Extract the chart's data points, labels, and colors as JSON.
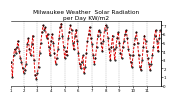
{
  "title": "Milwaukee Weather  Solar Radiation\nper Day KW/m2",
  "background_color": "#ffffff",
  "line_color": "#dd0000",
  "dot_color": "#000000",
  "grid_color": "#999999",
  "ylim": [
    0,
    7.5
  ],
  "y_values": [
    2.8,
    1.0,
    3.5,
    4.2,
    3.8,
    4.5,
    5.2,
    4.0,
    3.2,
    2.8,
    2.0,
    1.5,
    1.8,
    2.5,
    4.8,
    5.5,
    4.2,
    3.5,
    4.8,
    5.8,
    3.0,
    1.2,
    0.8,
    1.5,
    2.2,
    3.8,
    5.0,
    6.2,
    7.0,
    6.5,
    6.8,
    5.5,
    6.0,
    4.5,
    3.5,
    5.2,
    6.0,
    5.0,
    3.8,
    2.5,
    3.2,
    4.2,
    5.5,
    6.8,
    7.2,
    5.8,
    4.5,
    3.2,
    4.0,
    3.5,
    5.5,
    6.2,
    7.0,
    6.5,
    5.0,
    4.2,
    5.8,
    6.5,
    5.2,
    3.8,
    2.5,
    2.0,
    2.8,
    3.5,
    1.5,
    2.2,
    3.8,
    5.2,
    6.0,
    6.8,
    5.5,
    4.8,
    3.5,
    2.5,
    3.2,
    4.5,
    5.8,
    6.5,
    6.2,
    5.0,
    4.0,
    5.2,
    6.5,
    7.0,
    6.8,
    5.5,
    4.2,
    3.0,
    4.5,
    5.8,
    4.2,
    3.0,
    4.5,
    5.5,
    6.2,
    5.0,
    3.8,
    3.2,
    4.5,
    5.2,
    6.0,
    6.5,
    5.5,
    4.2,
    3.5,
    2.8,
    2.2,
    3.5,
    4.8,
    5.5,
    6.2,
    5.0,
    3.5,
    2.2,
    1.8,
    3.0,
    4.5,
    5.8,
    5.2,
    4.0,
    3.2,
    2.5,
    1.8,
    2.5,
    3.5,
    4.5,
    5.8,
    6.5,
    5.2,
    4.0,
    5.5,
    6.5
  ],
  "vgrid_positions": [
    11,
    23,
    35,
    47,
    59,
    71,
    83,
    95,
    107,
    119
  ],
  "x_tick_labels_pos": [
    0,
    11,
    23,
    35,
    47,
    59,
    71,
    83,
    95,
    107,
    119
  ],
  "x_tick_labels": [
    "1",
    "2",
    "3",
    "4",
    "5",
    "6",
    "7",
    "8",
    "9",
    "10",
    "11"
  ],
  "title_fontsize": 4.2,
  "tick_fontsize": 2.8
}
